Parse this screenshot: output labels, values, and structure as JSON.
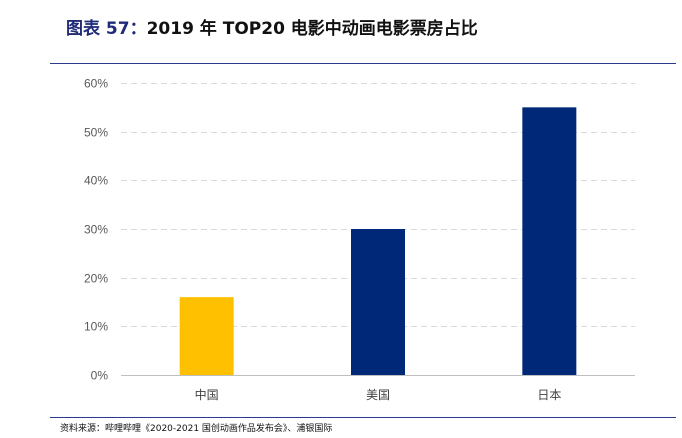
{
  "title": {
    "figure_label": "图表 57：",
    "text": "2019 年 TOP20 电影中动画电影票房占比"
  },
  "source": "资料来源：哔哩哔哩《2020-2021 国创动画作品发布会》、浦银国际",
  "colors": {
    "accent_rule": "#2b3a8c",
    "bar_highlight": "#ffc000",
    "bar_default": "#002878",
    "grid": "#d9d9d9"
  },
  "chart_data": {
    "type": "bar",
    "categories": [
      "中国",
      "美国",
      "日本"
    ],
    "values": [
      16,
      30,
      55
    ],
    "value_unit": "%",
    "ylim": [
      0,
      60
    ],
    "yticks": [
      "0%",
      "10%",
      "20%",
      "30%",
      "40%",
      "50%",
      "60%"
    ],
    "grid": true,
    "gridline_style": "dashed",
    "bar_colors": [
      "#ffc000",
      "#002878",
      "#002878"
    ],
    "xlabel": "",
    "ylabel": ""
  }
}
